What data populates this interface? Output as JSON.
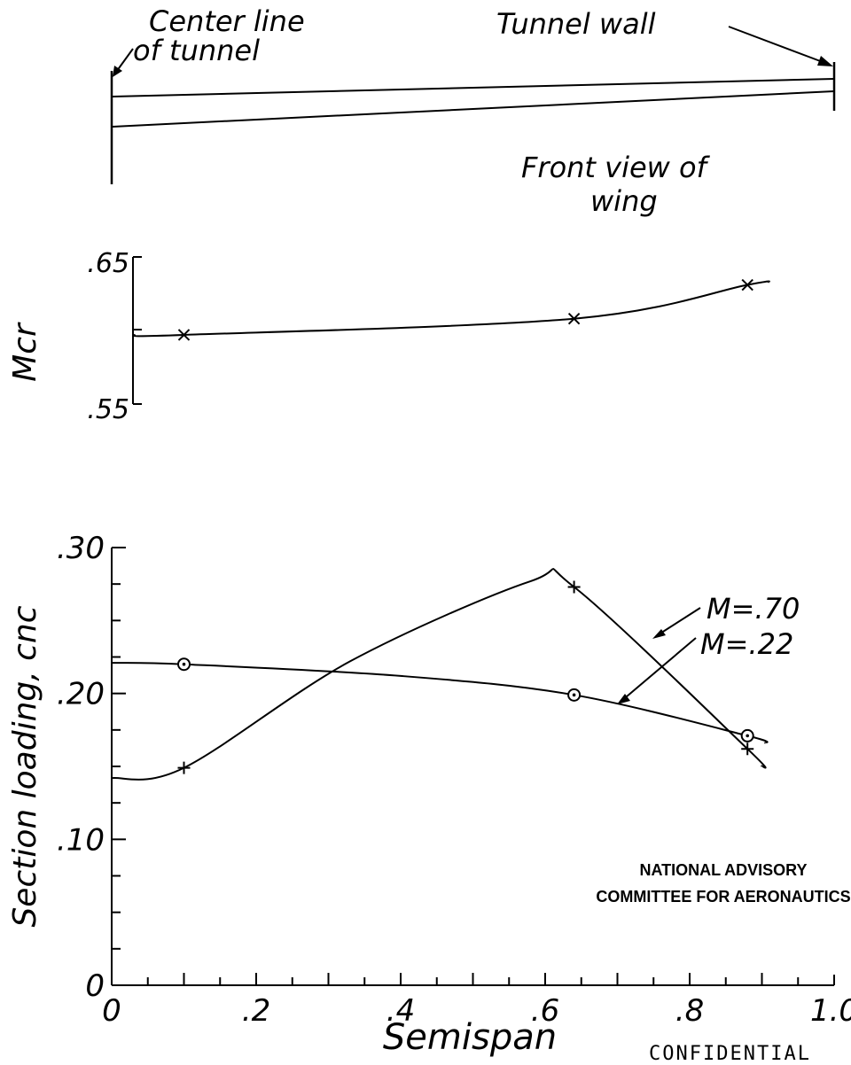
{
  "wing_diagram": {
    "center_label_line1": "Center line",
    "center_label_line2": "of tunnel",
    "wall_label": "Tunnel wall",
    "front_view_line1": "Front view of",
    "front_view_line2": "wing"
  },
  "chart_data": [
    {
      "type": "line",
      "ylabel": "Mcr",
      "ylim": [
        0.55,
        0.65
      ],
      "yticks": [
        ".65",
        ".55"
      ],
      "xlim": [
        0,
        1.0
      ],
      "grid": false,
      "series": [
        {
          "marker": "x",
          "points": [
            [
              0.1,
              0.597
            ],
            [
              0.64,
              0.608
            ],
            [
              0.88,
              0.631
            ]
          ]
        }
      ]
    },
    {
      "type": "line",
      "xlabel": "Semispan",
      "ylabel": "Section loading, cnc",
      "xlim": [
        0,
        1.0
      ],
      "ylim": [
        0,
        0.3
      ],
      "xticks": [
        "0",
        ".2",
        ".4",
        ".6",
        ".8",
        "1.0"
      ],
      "yticks": [
        "0",
        ".10",
        ".20",
        ".30"
      ],
      "grid": false,
      "series": [
        {
          "name": "M=.70",
          "marker": "+",
          "points": [
            [
              0.1,
              0.149
            ],
            [
              0.64,
              0.273
            ],
            [
              0.88,
              0.162
            ]
          ]
        },
        {
          "name": "M=.22",
          "marker": "circle-dot",
          "points": [
            [
              0.1,
              0.22
            ],
            [
              0.64,
              0.199
            ],
            [
              0.88,
              0.171
            ]
          ]
        }
      ]
    }
  ],
  "stamp": {
    "line1": "NATIONAL ADVISORY",
    "line2": "COMMITTEE FOR AERONAUTICS"
  },
  "footer": {
    "classification": "CONFIDENTIAL"
  }
}
